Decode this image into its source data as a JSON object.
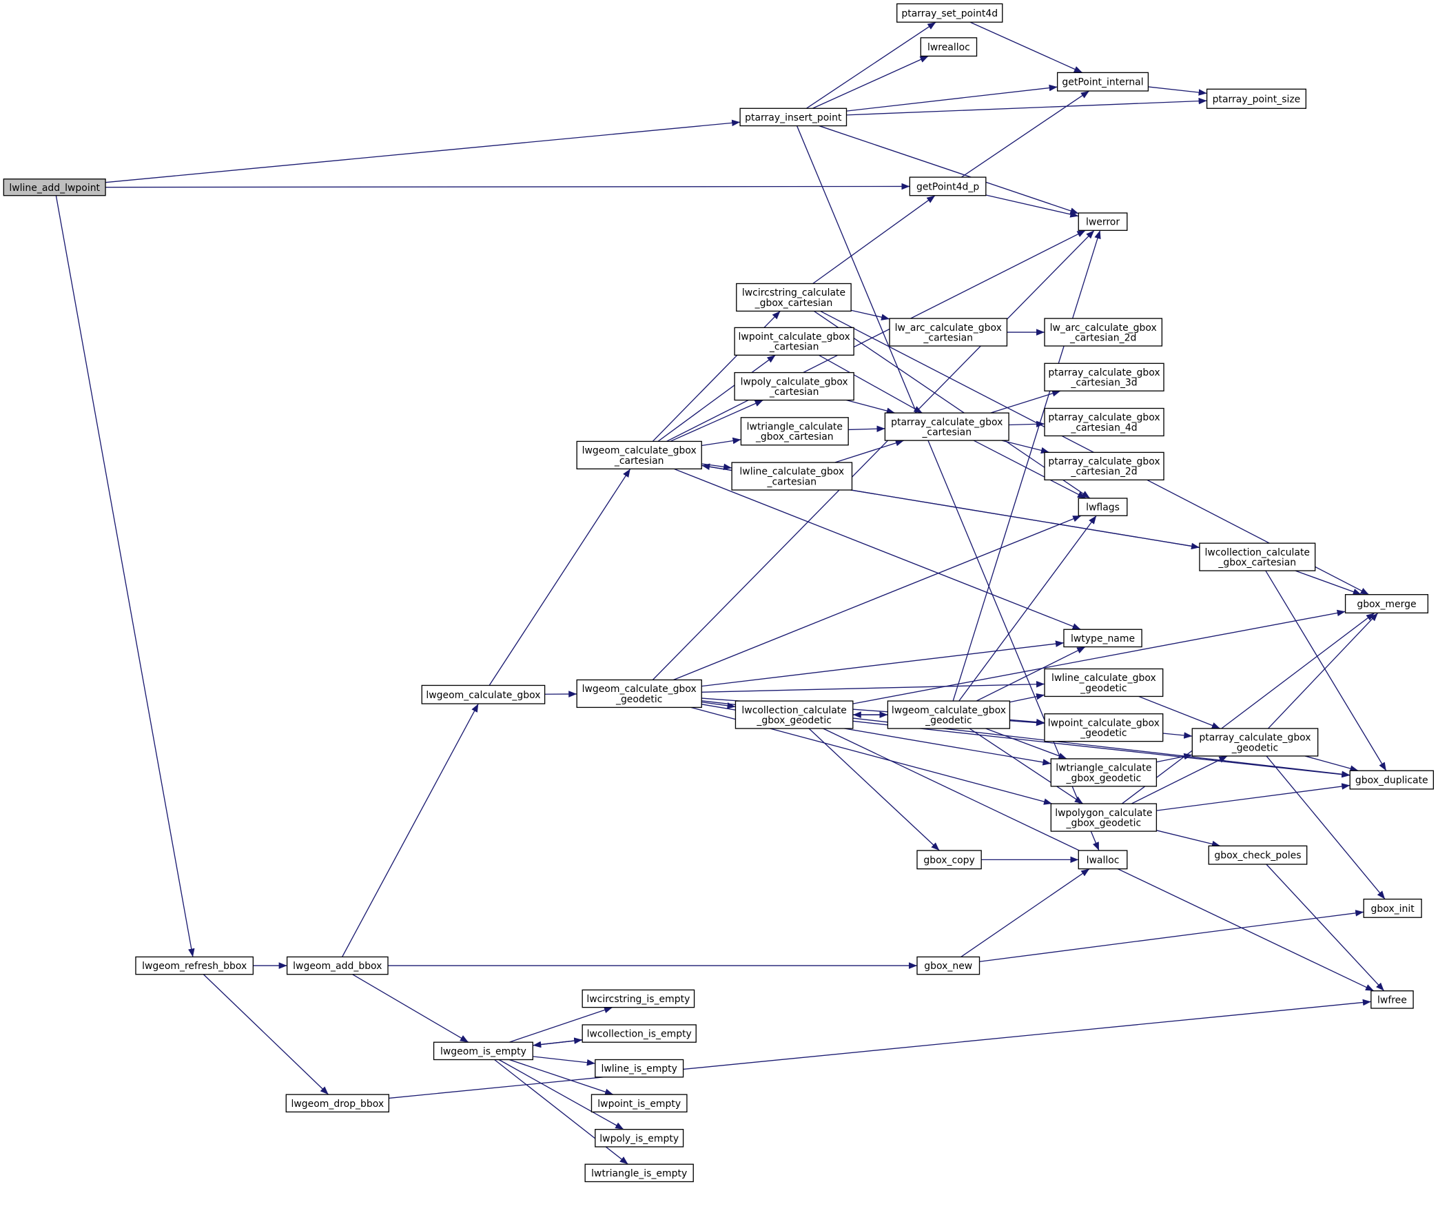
{
  "colors": {
    "edge": "#191970",
    "root_fill": "#bfbfbf",
    "node_border": "#000000",
    "incomplete_border": "#ff0000",
    "background": "#ffffff"
  },
  "nodes": [
    {
      "lines": [
        "lwline_add_lwpoint"
      ],
      "root": true
    },
    {
      "lines": [
        "ptarray_insert_point"
      ]
    },
    {
      "lines": [
        "ptarray_set_point4d"
      ]
    },
    {
      "lines": [
        "lwrealloc"
      ]
    },
    {
      "lines": [
        "getPoint_internal"
      ]
    },
    {
      "lines": [
        "ptarray_point_size"
      ]
    },
    {
      "lines": [
        "getPoint4d_p"
      ]
    },
    {
      "lines": [
        "lwerror"
      ]
    },
    {
      "lines": [
        "lwcircstring_calculate",
        "_gbox_cartesian"
      ]
    },
    {
      "lines": [
        "lw_arc_calculate_gbox",
        "_cartesian"
      ]
    },
    {
      "lines": [
        "lw_arc_calculate_gbox",
        "_cartesian_2d"
      ],
      "red": true
    },
    {
      "lines": [
        "lwpoint_calculate_gbox",
        "_cartesian"
      ]
    },
    {
      "lines": [
        "lwpoly_calculate_gbox",
        "_cartesian"
      ]
    },
    {
      "lines": [
        "ptarray_calculate_gbox",
        "_cartesian_3d"
      ],
      "red": true
    },
    {
      "lines": [
        "lwtriangle_calculate",
        "_gbox_cartesian"
      ]
    },
    {
      "lines": [
        "ptarray_calculate_gbox",
        "_cartesian"
      ]
    },
    {
      "lines": [
        "ptarray_calculate_gbox",
        "_cartesian_4d"
      ],
      "red": true
    },
    {
      "lines": [
        "lwgeom_calculate_gbox",
        "_cartesian"
      ]
    },
    {
      "lines": [
        "lwline_calculate_gbox",
        "_cartesian"
      ]
    },
    {
      "lines": [
        "ptarray_calculate_gbox",
        "_cartesian_2d"
      ],
      "red": true
    },
    {
      "lines": [
        "lwflags"
      ]
    },
    {
      "lines": [
        "lwcollection_calculate",
        "_gbox_cartesian"
      ]
    },
    {
      "lines": [
        "gbox_merge"
      ]
    },
    {
      "lines": [
        "lwtype_name"
      ]
    },
    {
      "lines": [
        "lwgeom_calculate_gbox"
      ]
    },
    {
      "lines": [
        "lwgeom_calculate_gbox",
        "_geodetic"
      ]
    },
    {
      "lines": [
        "lwline_calculate_gbox",
        "_geodetic"
      ]
    },
    {
      "lines": [
        "lwcollection_calculate",
        "_gbox_geodetic"
      ]
    },
    {
      "lines": [
        "lwgeom_calculate_gbox",
        "_geodetic"
      ]
    },
    {
      "lines": [
        "lwpoint_calculate_gbox",
        "_geodetic"
      ]
    },
    {
      "lines": [
        "ptarray_calculate_gbox",
        "_geodetic"
      ],
      "red": true
    },
    {
      "lines": [
        "lwtriangle_calculate",
        "_gbox_geodetic"
      ]
    },
    {
      "lines": [
        "gbox_duplicate"
      ]
    },
    {
      "lines": [
        "lwpolygon_calculate",
        "_gbox_geodetic"
      ]
    },
    {
      "lines": [
        "gbox_check_poles"
      ],
      "red": true
    },
    {
      "lines": [
        "gbox_copy"
      ]
    },
    {
      "lines": [
        "lwalloc"
      ]
    },
    {
      "lines": [
        "gbox_init"
      ]
    },
    {
      "lines": [
        "lwgeom_refresh_bbox"
      ]
    },
    {
      "lines": [
        "lwgeom_add_bbox"
      ]
    },
    {
      "lines": [
        "gbox_new"
      ]
    },
    {
      "lines": [
        "lwfree"
      ]
    },
    {
      "lines": [
        "lwcircstring_is_empty"
      ]
    },
    {
      "lines": [
        "lwcollection_is_empty"
      ]
    },
    {
      "lines": [
        "lwgeom_is_empty"
      ]
    },
    {
      "lines": [
        "lwline_is_empty"
      ]
    },
    {
      "lines": [
        "lwpoint_is_empty"
      ]
    },
    {
      "lines": [
        "lwpoly_is_empty"
      ]
    },
    {
      "lines": [
        "lwtriangle_is_empty"
      ]
    },
    {
      "lines": [
        "lwgeom_drop_bbox"
      ]
    }
  ],
  "edges": [
    [
      0,
      1
    ],
    [
      0,
      6
    ],
    [
      0,
      38
    ],
    [
      1,
      2
    ],
    [
      1,
      3
    ],
    [
      1,
      4
    ],
    [
      1,
      5
    ],
    [
      1,
      7
    ],
    [
      1,
      36
    ],
    [
      2,
      4
    ],
    [
      4,
      5
    ],
    [
      6,
      4
    ],
    [
      6,
      7
    ],
    [
      17,
      7
    ],
    [
      17,
      8
    ],
    [
      17,
      11
    ],
    [
      17,
      12
    ],
    [
      17,
      14
    ],
    [
      17,
      18
    ],
    [
      17,
      21
    ],
    [
      17,
      23
    ],
    [
      8,
      6
    ],
    [
      8,
      9
    ],
    [
      8,
      22
    ],
    [
      8,
      20
    ],
    [
      9,
      10
    ],
    [
      11,
      15
    ],
    [
      12,
      15
    ],
    [
      14,
      15
    ],
    [
      18,
      15
    ],
    [
      15,
      13
    ],
    [
      15,
      16
    ],
    [
      15,
      19
    ],
    [
      15,
      20
    ],
    [
      21,
      17
    ],
    [
      21,
      22
    ],
    [
      21,
      32
    ],
    [
      24,
      17
    ],
    [
      24,
      25
    ],
    [
      25,
      7
    ],
    [
      25,
      20
    ],
    [
      25,
      23
    ],
    [
      25,
      26
    ],
    [
      25,
      27
    ],
    [
      25,
      29
    ],
    [
      25,
      31
    ],
    [
      25,
      33
    ],
    [
      25,
      32
    ],
    [
      27,
      22
    ],
    [
      27,
      28
    ],
    [
      27,
      35
    ],
    [
      27,
      41
    ],
    [
      27,
      32
    ],
    [
      28,
      27
    ],
    [
      28,
      7
    ],
    [
      28,
      20
    ],
    [
      28,
      23
    ],
    [
      28,
      26
    ],
    [
      28,
      29
    ],
    [
      28,
      31
    ],
    [
      28,
      33
    ],
    [
      26,
      30
    ],
    [
      29,
      30
    ],
    [
      31,
      30
    ],
    [
      33,
      30
    ],
    [
      33,
      22
    ],
    [
      33,
      32
    ],
    [
      33,
      34
    ],
    [
      30,
      22
    ],
    [
      30,
      32
    ],
    [
      30,
      37
    ],
    [
      34,
      41
    ],
    [
      35,
      36
    ],
    [
      40,
      36
    ],
    [
      40,
      37
    ],
    [
      38,
      39
    ],
    [
      38,
      49
    ],
    [
      39,
      24
    ],
    [
      39,
      40
    ],
    [
      39,
      44
    ],
    [
      44,
      42
    ],
    [
      44,
      43
    ],
    [
      44,
      45
    ],
    [
      44,
      46
    ],
    [
      44,
      47
    ],
    [
      44,
      48
    ],
    [
      43,
      44
    ],
    [
      49,
      41
    ]
  ]
}
